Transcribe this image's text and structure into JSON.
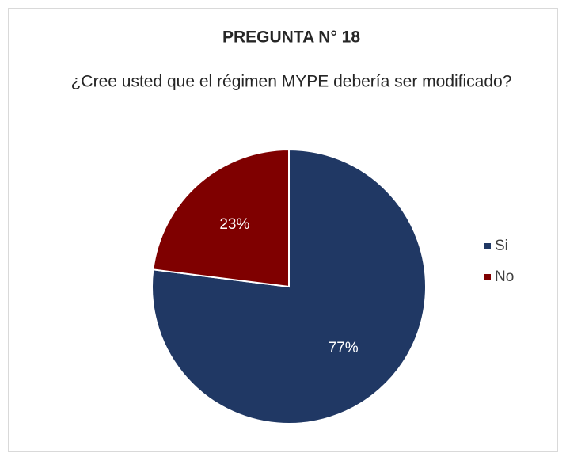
{
  "chart_data": {
    "type": "pie",
    "title": "PREGUNTA N° 18",
    "subtitle": "¿Cree usted que el régimen MYPE debería ser modificado?",
    "categories": [
      "Si",
      "No"
    ],
    "values": [
      77,
      23
    ],
    "value_labels": [
      "77%",
      "23%"
    ],
    "colors": [
      "#203864",
      "#7f0000"
    ],
    "legend": "right"
  }
}
